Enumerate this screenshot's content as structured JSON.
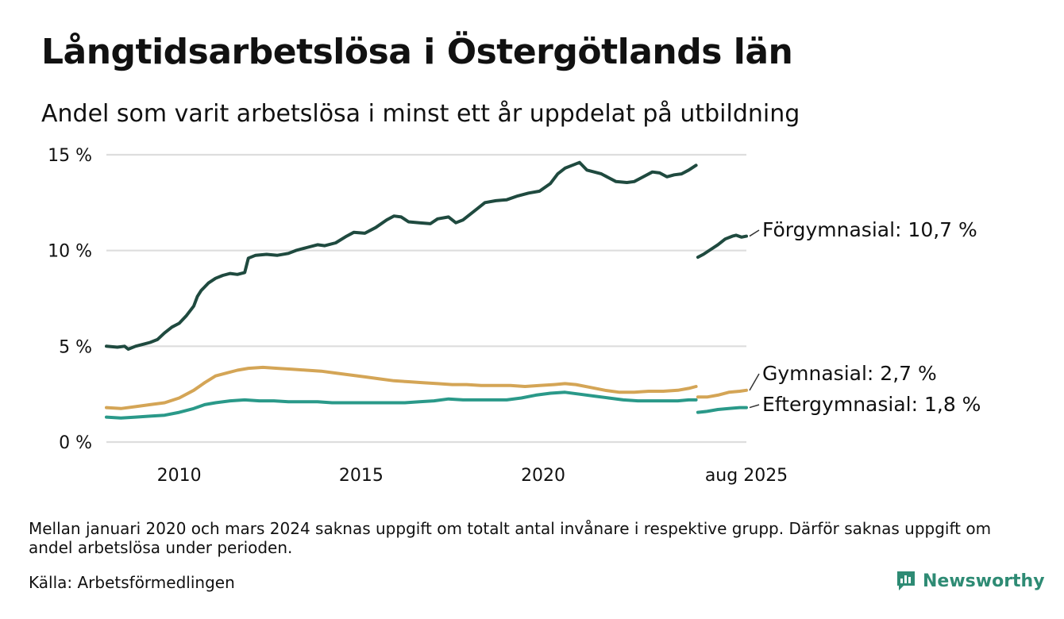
{
  "header": {
    "title": "Långtidsarbetslösa i Östergötlands län",
    "subtitle": "Andel som varit arbetslösa i minst ett år uppdelat på utbildning"
  },
  "footer": {
    "note": "Mellan januari 2020 och mars 2024 saknas uppgift om totalt antal invånare i respektive grupp. Därför saknas uppgift om andel arbetslösa under perioden.",
    "source": "Källa: Arbetsförmedlingen"
  },
  "brand": {
    "name": "Newsworthy",
    "color": "#2e8b74"
  },
  "chart_data": {
    "type": "line",
    "title": "Långtidsarbetslösa i Östergötlands län",
    "subtitle": "Andel som varit arbetslösa i minst ett år uppdelat på utbildning",
    "xlabel": "",
    "ylabel": "",
    "ylim": [
      0,
      15
    ],
    "xlim": [
      2008.0,
      2025.583
    ],
    "yticks": [
      0,
      5,
      10,
      15
    ],
    "ytick_labels": [
      "0 %",
      "5 %",
      "10 %",
      "15 %"
    ],
    "xticks": [
      2010,
      2015,
      2020,
      2025.583
    ],
    "xtick_labels": [
      "2010",
      "2015",
      "2020",
      "aug 2025"
    ],
    "grid": true,
    "legend": "end-labels",
    "series": [
      {
        "name": "Förgymnasial",
        "end_label": "Förgymnasial: 10,7 %",
        "color": "#1f4a3f",
        "segments": [
          [
            [
              2008.0,
              5.0
            ],
            [
              2008.3,
              4.95
            ],
            [
              2008.5,
              5.0
            ],
            [
              2008.6,
              4.85
            ],
            [
              2008.8,
              5.0
            ],
            [
              2009.0,
              5.1
            ],
            [
              2009.2,
              5.2
            ],
            [
              2009.4,
              5.35
            ],
            [
              2009.6,
              5.7
            ],
            [
              2009.8,
              6.0
            ],
            [
              2010.0,
              6.2
            ],
            [
              2010.2,
              6.6
            ],
            [
              2010.4,
              7.1
            ],
            [
              2010.5,
              7.6
            ],
            [
              2010.6,
              7.9
            ],
            [
              2010.8,
              8.3
            ],
            [
              2011.0,
              8.55
            ],
            [
              2011.2,
              8.7
            ],
            [
              2011.4,
              8.8
            ],
            [
              2011.6,
              8.75
            ],
            [
              2011.8,
              8.85
            ],
            [
              2011.9,
              9.6
            ],
            [
              2012.1,
              9.75
            ],
            [
              2012.4,
              9.8
            ],
            [
              2012.7,
              9.75
            ],
            [
              2013.0,
              9.85
            ],
            [
              2013.2,
              10.0
            ],
            [
              2013.5,
              10.15
            ],
            [
              2013.8,
              10.3
            ],
            [
              2014.0,
              10.25
            ],
            [
              2014.3,
              10.4
            ],
            [
              2014.6,
              10.75
            ],
            [
              2014.8,
              10.95
            ],
            [
              2015.1,
              10.9
            ],
            [
              2015.4,
              11.2
            ],
            [
              2015.7,
              11.6
            ],
            [
              2015.9,
              11.8
            ],
            [
              2016.1,
              11.75
            ],
            [
              2016.3,
              11.5
            ],
            [
              2016.6,
              11.45
            ],
            [
              2016.9,
              11.4
            ],
            [
              2017.1,
              11.65
            ],
            [
              2017.4,
              11.75
            ],
            [
              2017.6,
              11.45
            ],
            [
              2017.8,
              11.6
            ],
            [
              2018.0,
              11.9
            ],
            [
              2018.2,
              12.2
            ],
            [
              2018.4,
              12.5
            ],
            [
              2018.7,
              12.6
            ],
            [
              2019.0,
              12.65
            ],
            [
              2019.3,
              12.85
            ],
            [
              2019.6,
              13.0
            ],
            [
              2019.9,
              13.1
            ],
            [
              2020.2,
              13.5
            ],
            [
              2020.4,
              14.0
            ],
            [
              2020.6,
              14.3
            ],
            [
              2020.8,
              14.45
            ],
            [
              2021.0,
              14.6
            ],
            [
              2021.2,
              14.2
            ],
            [
              2021.4,
              14.1
            ],
            [
              2021.6,
              14.0
            ],
            [
              2021.8,
              13.8
            ],
            [
              2022.0,
              13.6
            ],
            [
              2022.3,
              13.55
            ],
            [
              2022.5,
              13.6
            ],
            [
              2022.7,
              13.8
            ],
            [
              2023.0,
              14.1
            ],
            [
              2023.2,
              14.05
            ],
            [
              2023.4,
              13.85
            ],
            [
              2023.6,
              13.95
            ],
            [
              2023.8,
              14.0
            ],
            [
              2024.0,
              14.2
            ],
            [
              2024.2,
              14.45
            ]
          ],
          [
            [
              2024.25,
              9.65
            ],
            [
              2024.4,
              9.8
            ],
            [
              2024.6,
              10.05
            ],
            [
              2024.8,
              10.3
            ],
            [
              2025.0,
              10.6
            ],
            [
              2025.2,
              10.75
            ],
            [
              2025.3,
              10.8
            ],
            [
              2025.45,
              10.7
            ],
            [
              2025.583,
              10.75
            ]
          ]
        ]
      },
      {
        "name": "Gymnasial",
        "end_label": "Gymnasial:  2,7 %",
        "color": "#d4a556",
        "segments": [
          [
            [
              2008.0,
              1.8
            ],
            [
              2008.4,
              1.75
            ],
            [
              2008.8,
              1.85
            ],
            [
              2009.2,
              1.95
            ],
            [
              2009.6,
              2.05
            ],
            [
              2010.0,
              2.3
            ],
            [
              2010.4,
              2.7
            ],
            [
              2010.7,
              3.1
            ],
            [
              2011.0,
              3.45
            ],
            [
              2011.3,
              3.6
            ],
            [
              2011.6,
              3.75
            ],
            [
              2011.9,
              3.85
            ],
            [
              2012.3,
              3.9
            ],
            [
              2012.7,
              3.85
            ],
            [
              2013.1,
              3.8
            ],
            [
              2013.5,
              3.75
            ],
            [
              2013.9,
              3.7
            ],
            [
              2014.3,
              3.6
            ],
            [
              2014.7,
              3.5
            ],
            [
              2015.1,
              3.4
            ],
            [
              2015.5,
              3.3
            ],
            [
              2015.9,
              3.2
            ],
            [
              2016.3,
              3.15
            ],
            [
              2016.7,
              3.1
            ],
            [
              2017.1,
              3.05
            ],
            [
              2017.5,
              3.0
            ],
            [
              2017.9,
              3.0
            ],
            [
              2018.3,
              2.95
            ],
            [
              2018.7,
              2.95
            ],
            [
              2019.1,
              2.95
            ],
            [
              2019.5,
              2.9
            ],
            [
              2019.9,
              2.95
            ],
            [
              2020.3,
              3.0
            ],
            [
              2020.6,
              3.05
            ],
            [
              2020.9,
              3.0
            ],
            [
              2021.3,
              2.85
            ],
            [
              2021.7,
              2.7
            ],
            [
              2022.1,
              2.6
            ],
            [
              2022.5,
              2.6
            ],
            [
              2022.9,
              2.65
            ],
            [
              2023.3,
              2.65
            ],
            [
              2023.7,
              2.7
            ],
            [
              2024.0,
              2.8
            ],
            [
              2024.2,
              2.9
            ]
          ],
          [
            [
              2024.25,
              2.35
            ],
            [
              2024.5,
              2.35
            ],
            [
              2024.8,
              2.45
            ],
            [
              2025.1,
              2.6
            ],
            [
              2025.4,
              2.65
            ],
            [
              2025.583,
              2.7
            ]
          ]
        ]
      },
      {
        "name": "Eftergymnasial",
        "end_label": "Eftergymnasial:  1,8 %",
        "color": "#2a9989",
        "segments": [
          [
            [
              2008.0,
              1.3
            ],
            [
              2008.4,
              1.25
            ],
            [
              2008.8,
              1.3
            ],
            [
              2009.2,
              1.35
            ],
            [
              2009.6,
              1.4
            ],
            [
              2010.0,
              1.55
            ],
            [
              2010.4,
              1.75
            ],
            [
              2010.7,
              1.95
            ],
            [
              2011.0,
              2.05
            ],
            [
              2011.4,
              2.15
            ],
            [
              2011.8,
              2.2
            ],
            [
              2012.2,
              2.15
            ],
            [
              2012.6,
              2.15
            ],
            [
              2013.0,
              2.1
            ],
            [
              2013.4,
              2.1
            ],
            [
              2013.8,
              2.1
            ],
            [
              2014.2,
              2.05
            ],
            [
              2014.6,
              2.05
            ],
            [
              2015.0,
              2.05
            ],
            [
              2015.4,
              2.05
            ],
            [
              2015.8,
              2.05
            ],
            [
              2016.2,
              2.05
            ],
            [
              2016.6,
              2.1
            ],
            [
              2017.0,
              2.15
            ],
            [
              2017.4,
              2.25
            ],
            [
              2017.8,
              2.2
            ],
            [
              2018.2,
              2.2
            ],
            [
              2018.6,
              2.2
            ],
            [
              2019.0,
              2.2
            ],
            [
              2019.4,
              2.3
            ],
            [
              2019.8,
              2.45
            ],
            [
              2020.2,
              2.55
            ],
            [
              2020.6,
              2.6
            ],
            [
              2021.0,
              2.5
            ],
            [
              2021.4,
              2.4
            ],
            [
              2021.8,
              2.3
            ],
            [
              2022.2,
              2.2
            ],
            [
              2022.6,
              2.15
            ],
            [
              2023.0,
              2.15
            ],
            [
              2023.4,
              2.15
            ],
            [
              2023.7,
              2.15
            ],
            [
              2024.0,
              2.2
            ],
            [
              2024.2,
              2.2
            ]
          ],
          [
            [
              2024.25,
              1.55
            ],
            [
              2024.5,
              1.6
            ],
            [
              2024.8,
              1.7
            ],
            [
              2025.1,
              1.75
            ],
            [
              2025.4,
              1.8
            ],
            [
              2025.583,
              1.8
            ]
          ]
        ]
      }
    ]
  }
}
